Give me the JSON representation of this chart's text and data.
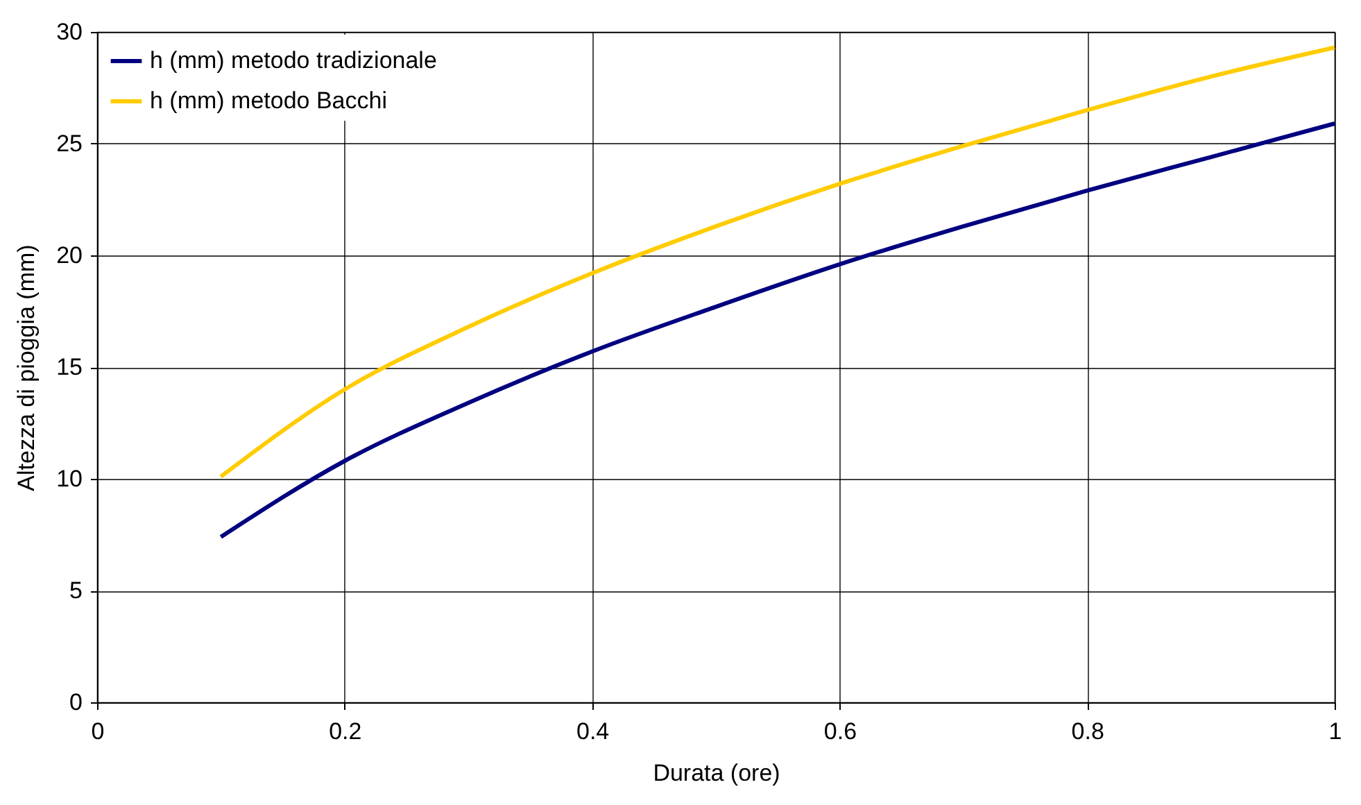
{
  "chart_data": {
    "type": "line",
    "xlabel": "Durata (ore)",
    "ylabel": "Altezza di pioggia (mm)",
    "x": [
      0.1,
      0.2,
      0.3,
      0.4,
      0.5,
      0.6,
      0.7,
      0.8,
      0.9,
      1.0
    ],
    "series": [
      {
        "name": "h (mm)  metodo tradizionale",
        "color": "#000080",
        "values": [
          7.4,
          10.8,
          13.4,
          15.7,
          17.7,
          19.6,
          21.3,
          22.9,
          24.4,
          25.9
        ]
      },
      {
        "name": "h (mm)  metodo Bacchi",
        "color": "#ffcc00",
        "values": [
          10.1,
          14.0,
          16.8,
          19.2,
          21.3,
          23.2,
          24.9,
          26.5,
          28.0,
          29.3
        ]
      }
    ],
    "xlim": [
      0,
      1
    ],
    "xticks": [
      0,
      0.2,
      0.4,
      0.6,
      0.8,
      1
    ],
    "ylim": [
      0,
      30
    ],
    "yticks": [
      0,
      5,
      10,
      15,
      20,
      25,
      30
    ],
    "grid": true,
    "legend": "top left",
    "marker": "none",
    "line_style": "solid"
  }
}
